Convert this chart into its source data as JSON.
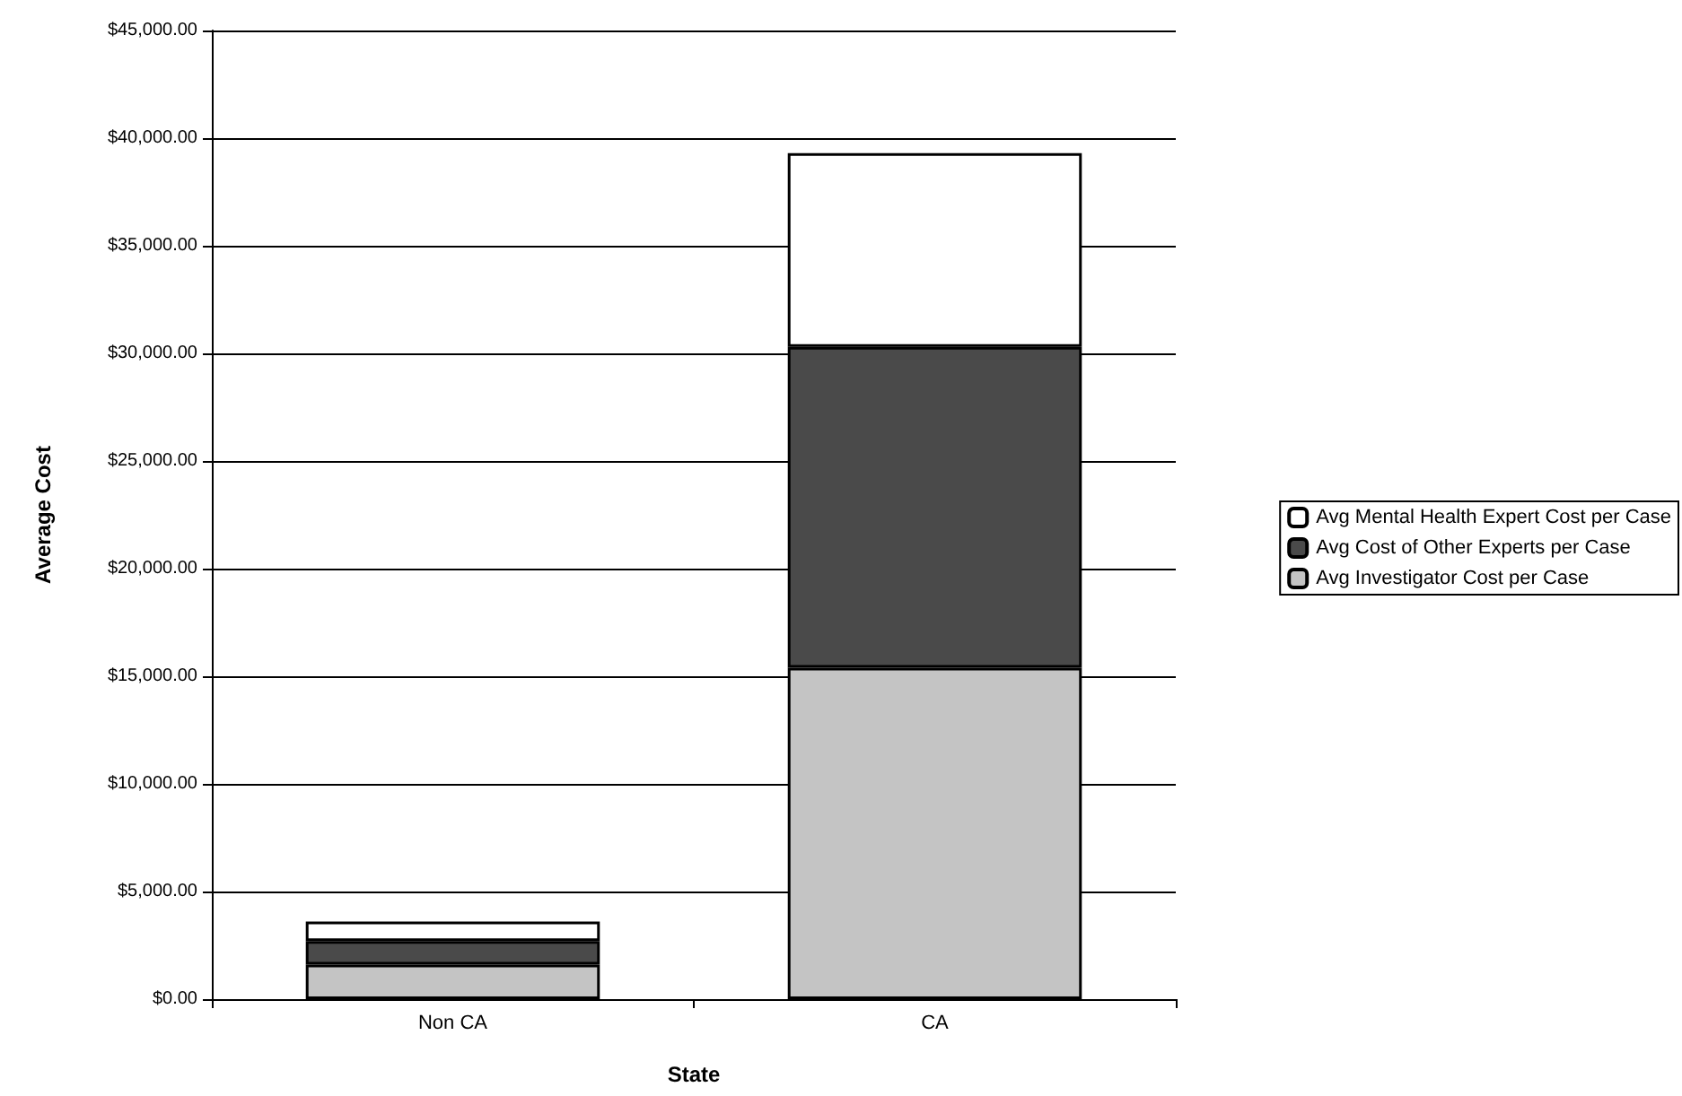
{
  "chart_data": {
    "type": "bar",
    "stacked": true,
    "xlabel": "State",
    "ylabel": "Average Cost",
    "categories": [
      "Non CA",
      "CA"
    ],
    "series": [
      {
        "name": "Avg Investigator Cost per Case",
        "color": "#c4c4c4",
        "values": [
          1600,
          15400
        ]
      },
      {
        "name": "Avg Cost of Other Experts per Case",
        "color": "#4a4a4a",
        "values": [
          1100,
          14900
        ]
      },
      {
        "name": "Avg Mental Health Expert Cost per Case",
        "color": "#ffffff",
        "values": [
          900,
          9000
        ]
      }
    ],
    "ylim": [
      0,
      45000
    ],
    "yticks": [
      {
        "value": 0,
        "label": "$0.00"
      },
      {
        "value": 5000,
        "label": "$5,000.00"
      },
      {
        "value": 10000,
        "label": "$10,000.00"
      },
      {
        "value": 15000,
        "label": "$15,000.00"
      },
      {
        "value": 20000,
        "label": "$20,000.00"
      },
      {
        "value": 25000,
        "label": "$25,000.00"
      },
      {
        "value": 30000,
        "label": "$30,000.00"
      },
      {
        "value": 35000,
        "label": "$35,000.00"
      },
      {
        "value": 40000,
        "label": "$40,000.00"
      },
      {
        "value": 45000,
        "label": "$45,000.00"
      }
    ],
    "grid": "y",
    "legend": "right"
  }
}
